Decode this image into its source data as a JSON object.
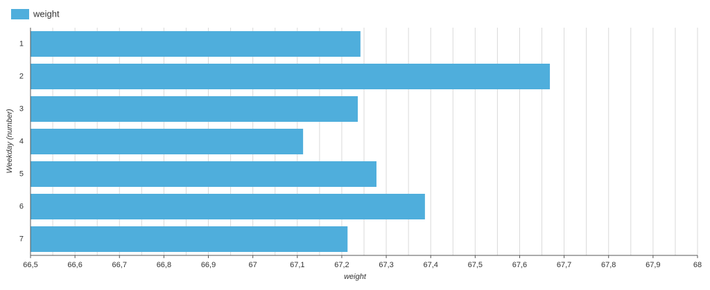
{
  "chart_data": {
    "type": "barh",
    "categories": [
      "1",
      "2",
      "3",
      "4",
      "5",
      "6",
      "7"
    ],
    "series": [
      {
        "name": "weight",
        "color": "#4faedc",
        "values": [
          67.242,
          67.668,
          67.236,
          67.113,
          67.278,
          67.387,
          67.213
        ]
      }
    ],
    "x_label": "weight",
    "y_label": "Weekday (number)",
    "xlim": [
      66.5,
      68
    ],
    "xticks": [
      {
        "value": 66.5,
        "label": "66,5"
      },
      {
        "value": 66.6,
        "label": "66,6"
      },
      {
        "value": 66.7,
        "label": "66,7"
      },
      {
        "value": 66.8,
        "label": "66,8"
      },
      {
        "value": 66.9,
        "label": "66,9"
      },
      67,
      {
        "value": 67.1,
        "label": "67,1"
      },
      {
        "value": 67.2,
        "label": "67,2"
      },
      {
        "value": 67.3,
        "label": "67,3"
      },
      {
        "value": 67.4,
        "label": "67,4"
      },
      {
        "value": 67.5,
        "label": "67,5"
      },
      {
        "value": 67.6,
        "label": "67,6"
      },
      {
        "value": 67.7,
        "label": "67,7"
      },
      {
        "value": 67.8,
        "label": "67,8"
      },
      {
        "value": 67.9,
        "label": "67,9"
      },
      68
    ],
    "xminor": [
      66.55,
      66.65,
      66.75,
      66.85,
      66.95,
      67.05,
      67.15,
      67.25,
      67.35,
      67.45,
      67.55,
      67.65,
      67.75,
      67.85,
      67.95
    ],
    "grid": true,
    "legend": "top-left"
  }
}
